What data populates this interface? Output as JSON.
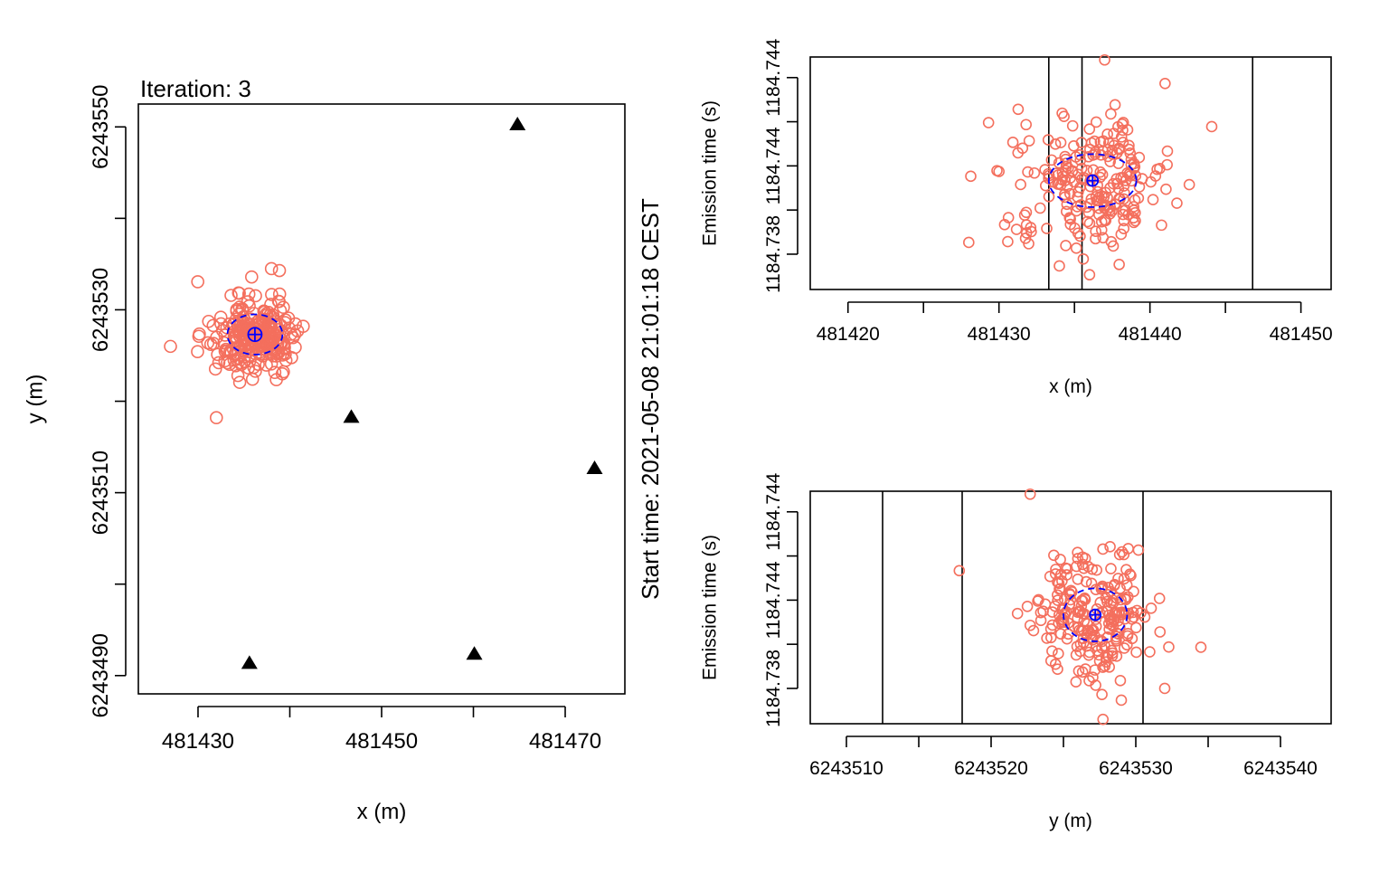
{
  "chart_data": [
    {
      "type": "scatter",
      "title": "",
      "subtitle": "Iteration: 3",
      "side_text": "Start time: 2021-05-08 21:01:18 CEST",
      "xlabel": "x (m)",
      "ylabel": "y (m)",
      "xlim": [
        481423.5,
        481476.5
      ],
      "ylim": [
        6243488,
        6243552.5
      ],
      "xticks": [
        481430,
        481440,
        481450,
        481460,
        481470
      ],
      "xtick_labels": [
        "481430",
        "",
        "481450",
        "",
        "481470"
      ],
      "yticks": [
        6243490,
        6243500,
        6243510,
        6243520,
        6243530,
        6243540,
        6243550
      ],
      "ytick_labels": [
        "6243490",
        "",
        "6243510",
        "",
        "6243530",
        "",
        "6243550"
      ],
      "grid": false,
      "series": [
        {
          "marker": "triangle",
          "color": "#000000",
          "points": [
            [
              481464.8,
              6243550.2
            ],
            [
              481446.7,
              6243518.2
            ],
            [
              481473.2,
              6243512.6
            ],
            [
              481460.1,
              6243492.3
            ],
            [
              481435.6,
              6243491.3
            ]
          ]
        },
        {
          "marker": "circle-open",
          "color": "#f46f5d",
          "center": [
            481436.2,
            6243527.3
          ],
          "spread": [
            2.3,
            2.0
          ],
          "count": 260,
          "outliers": [
            [
              481432.0,
              6243518.2
            ],
            [
              481438.0,
              6243534.5
            ],
            [
              481427.0,
              6243526.0
            ]
          ]
        },
        {
          "marker": "crosshair",
          "color": "#0000ff",
          "points": [
            [
              481436.2,
              6243527.3
            ]
          ],
          "ellipse": {
            "rx": 3.0,
            "ry": 2.2,
            "style": "dashed"
          }
        }
      ]
    },
    {
      "type": "scatter",
      "title": "",
      "xlabel": "x (m)",
      "ylabel": "Emission time (s)",
      "xlim": [
        481417.5,
        481452
      ],
      "ylim": [
        1184.7368,
        1184.7447
      ],
      "xticks": [
        481420,
        481425,
        481430,
        481435,
        481440,
        481445,
        481450
      ],
      "xtick_labels": [
        "481420",
        "",
        "481430",
        "",
        "481440",
        "",
        "481450"
      ],
      "yticks": [
        1184.738,
        1184.7395,
        1184.741,
        1184.7425,
        1184.744
      ],
      "ytick_labels": [
        "1184.738",
        "",
        "1184.74",
        "",
        "1184.744"
      ],
      "ytick_display": [
        "1184.738",
        "1184.738",
        "1184.744",
        "1184.744",
        "1184.744"
      ],
      "vlines": [
        481433.3,
        481435.5,
        481446.8
      ],
      "grid": false,
      "series": [
        {
          "marker": "circle-open",
          "color": "#f46f5d",
          "center": [
            481436.2,
            1184.7405
          ],
          "spread": [
            2.6,
            0.0011
          ],
          "count": 230,
          "outliers": [
            [
              481437.0,
              1184.7446
            ],
            [
              481428.0,
              1184.7384
            ],
            [
              481436.0,
              1184.7373
            ],
            [
              481434.0,
              1184.7376
            ],
            [
              481441.0,
              1184.7438
            ]
          ]
        },
        {
          "marker": "crosshair",
          "color": "#0000ff",
          "points": [
            [
              481436.2,
              1184.7405
            ]
          ],
          "ellipse": {
            "rx": 2.9,
            "ry": 0.0009,
            "style": "dashed"
          }
        }
      ]
    },
    {
      "type": "scatter",
      "title": "",
      "xlabel": "y (m)",
      "ylabel": "Emission time (s)",
      "xlim": [
        6243507.5,
        6243543.5
      ],
      "ylim": [
        1184.7368,
        1184.7447
      ],
      "xticks": [
        6243510,
        6243515,
        6243520,
        6243525,
        6243530,
        6243535,
        6243540
      ],
      "xtick_labels": [
        "6243510",
        "",
        "6243520",
        "",
        "6243530",
        "",
        "6243540"
      ],
      "yticks": [
        1184.738,
        1184.7395,
        1184.741,
        1184.7425,
        1184.744
      ],
      "ytick_labels": [
        "1184.738",
        "",
        "1184.74",
        "",
        "1184.744"
      ],
      "ytick_display": [
        "1184.738",
        "1184.738",
        "1184.744",
        "1184.744",
        "1184.744"
      ],
      "vlines": [
        6243512.5,
        6243518.0,
        6243530.5
      ],
      "grid": false,
      "series": [
        {
          "marker": "circle-open",
          "color": "#f46f5d",
          "center": [
            6243527.2,
            1184.7405
          ],
          "spread": [
            2.0,
            0.0011
          ],
          "count": 230,
          "outliers": [
            [
              6243522.7,
              1184.7446
            ],
            [
              6243517.8,
              1184.742
            ],
            [
              6243534.5,
              1184.7394
            ],
            [
              6243532.0,
              1184.738
            ],
            [
              6243529.0,
              1184.7376
            ]
          ]
        },
        {
          "marker": "crosshair",
          "color": "#0000ff",
          "points": [
            [
              6243527.2,
              1184.7405
            ]
          ],
          "ellipse": {
            "rx": 2.2,
            "ry": 0.0009,
            "style": "dashed"
          }
        }
      ]
    }
  ]
}
